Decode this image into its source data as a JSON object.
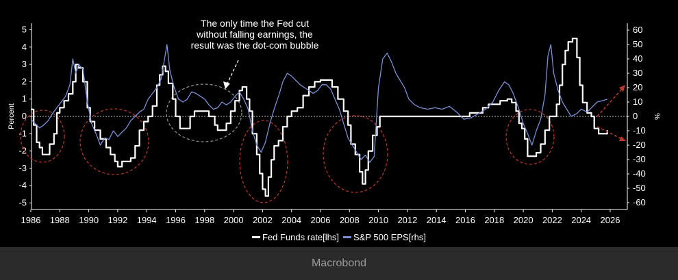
{
  "chart_data": {
    "type": "line",
    "annotation": [
      "The only time the Fed cut",
      "without falling earnings, the",
      "result was the dot-com bubble"
    ],
    "ylabel_left": "Percent",
    "ylabel_right": "%",
    "xlim": [
      1986,
      2027.5
    ],
    "ylim_left": [
      -5.5,
      5.5
    ],
    "ylim_right": [
      -62,
      62
    ],
    "x_ticks": [
      "1986",
      "1988",
      "1990",
      "1992",
      "1994",
      "1996",
      "1998",
      "2000",
      "2002",
      "2004",
      "2006",
      "2008",
      "2010",
      "2012",
      "2014",
      "2016",
      "2018",
      "2020",
      "2022",
      "2024",
      "2026"
    ],
    "y_left_ticks": [
      "5",
      "4",
      "3",
      "2",
      "1",
      "0",
      "-1",
      "-2",
      "-3",
      "-4",
      "-5"
    ],
    "y_right_ticks": [
      "60",
      "50",
      "40",
      "30",
      "20",
      "10",
      "0",
      "-10",
      "-20",
      "-30",
      "-40",
      "-50",
      "-60"
    ],
    "zero_line": true,
    "series": [
      {
        "name": "Fed Funds rate[lhs]",
        "axis": "left",
        "color": "#ffffff",
        "points": [
          [
            1986.0,
            0.4
          ],
          [
            1986.2,
            -0.5
          ],
          [
            1986.4,
            -1.5
          ],
          [
            1986.6,
            -1.8
          ],
          [
            1986.8,
            -2.2
          ],
          [
            1987.1,
            -2.2
          ],
          [
            1987.3,
            -1.6
          ],
          [
            1987.6,
            -1.0
          ],
          [
            1987.8,
            0.2
          ],
          [
            1988.0,
            0.5
          ],
          [
            1988.3,
            0.9
          ],
          [
            1988.6,
            1.3
          ],
          [
            1988.9,
            2.0
          ],
          [
            1989.1,
            3.0
          ],
          [
            1989.3,
            2.8
          ],
          [
            1989.6,
            2.0
          ],
          [
            1989.9,
            0.5
          ],
          [
            1990.1,
            -0.3
          ],
          [
            1990.4,
            -0.8
          ],
          [
            1990.8,
            -1.3
          ],
          [
            1991.2,
            -1.8
          ],
          [
            1991.5,
            -2.2
          ],
          [
            1991.8,
            -2.6
          ],
          [
            1992.0,
            -2.9
          ],
          [
            1992.3,
            -2.6
          ],
          [
            1992.6,
            -2.6
          ],
          [
            1992.9,
            -2.4
          ],
          [
            1993.2,
            -1.7
          ],
          [
            1993.5,
            -0.8
          ],
          [
            1993.8,
            -0.3
          ],
          [
            1994.1,
            0.0
          ],
          [
            1994.4,
            0.6
          ],
          [
            1994.7,
            1.8
          ],
          [
            1994.9,
            2.4
          ],
          [
            1995.1,
            2.9
          ],
          [
            1995.3,
            2.6
          ],
          [
            1995.5,
            1.9
          ],
          [
            1995.8,
            1.0
          ],
          [
            1996.0,
            0.0
          ],
          [
            1996.3,
            -0.7
          ],
          [
            1996.6,
            -0.7
          ],
          [
            1997.0,
            0.0
          ],
          [
            1997.3,
            0.3
          ],
          [
            1997.6,
            0.3
          ],
          [
            1997.9,
            0.3
          ],
          [
            1998.3,
            0.0
          ],
          [
            1998.7,
            -0.5
          ],
          [
            1998.9,
            -0.8
          ],
          [
            1999.2,
            -0.8
          ],
          [
            1999.5,
            -0.4
          ],
          [
            1999.8,
            0.3
          ],
          [
            2000.1,
            0.9
          ],
          [
            2000.4,
            1.5
          ],
          [
            2000.6,
            1.7
          ],
          [
            2000.9,
            1.0
          ],
          [
            2001.1,
            0.3
          ],
          [
            2001.3,
            -1.0
          ],
          [
            2001.6,
            -2.2
          ],
          [
            2001.8,
            -3.3
          ],
          [
            2002.0,
            -4.2
          ],
          [
            2002.2,
            -4.6
          ],
          [
            2002.4,
            -3.5
          ],
          [
            2002.6,
            -2.5
          ],
          [
            2002.8,
            -1.7
          ],
          [
            2003.1,
            -1.4
          ],
          [
            2003.4,
            -0.6
          ],
          [
            2003.7,
            0.0
          ],
          [
            2004.0,
            0.3
          ],
          [
            2004.4,
            0.5
          ],
          [
            2004.8,
            1.2
          ],
          [
            2005.2,
            1.7
          ],
          [
            2005.6,
            2.0
          ],
          [
            2006.0,
            2.1
          ],
          [
            2006.4,
            2.1
          ],
          [
            2006.8,
            1.7
          ],
          [
            2007.2,
            1.0
          ],
          [
            2007.6,
            0.3
          ],
          [
            2007.9,
            -0.5
          ],
          [
            2008.1,
            -1.6
          ],
          [
            2008.4,
            -2.2
          ],
          [
            2008.7,
            -3.2
          ],
          [
            2008.9,
            -3.9
          ],
          [
            2009.1,
            -3.1
          ],
          [
            2009.3,
            -2.0
          ],
          [
            2009.6,
            -1.1
          ],
          [
            2009.9,
            -0.6
          ],
          [
            2010.1,
            0.0
          ],
          [
            2012.0,
            0.0
          ],
          [
            2014.0,
            0.0
          ],
          [
            2016.0,
            0.0
          ],
          [
            2016.3,
            0.2
          ],
          [
            2016.8,
            0.2
          ],
          [
            2017.2,
            0.5
          ],
          [
            2017.6,
            0.7
          ],
          [
            2018.0,
            0.7
          ],
          [
            2018.4,
            0.9
          ],
          [
            2018.9,
            1.0
          ],
          [
            2019.2,
            0.8
          ],
          [
            2019.5,
            0.3
          ],
          [
            2019.7,
            -0.4
          ],
          [
            2019.9,
            -0.7
          ],
          [
            2020.1,
            -1.3
          ],
          [
            2020.3,
            -2.3
          ],
          [
            2020.6,
            -2.3
          ],
          [
            2020.9,
            -2.1
          ],
          [
            2021.2,
            -1.6
          ],
          [
            2021.5,
            -0.8
          ],
          [
            2021.8,
            0.0
          ],
          [
            2022.1,
            0.0
          ],
          [
            2022.3,
            0.7
          ],
          [
            2022.5,
            1.8
          ],
          [
            2022.7,
            3.0
          ],
          [
            2022.9,
            3.8
          ],
          [
            2023.1,
            4.3
          ],
          [
            2023.4,
            4.5
          ],
          [
            2023.7,
            3.4
          ],
          [
            2023.9,
            1.8
          ],
          [
            2024.1,
            0.8
          ],
          [
            2024.4,
            0.2
          ],
          [
            2024.7,
            0.0
          ],
          [
            2024.9,
            -0.7
          ],
          [
            2025.2,
            -1.0
          ],
          [
            2025.6,
            -1.0
          ],
          [
            2025.8,
            -0.8
          ]
        ]
      },
      {
        "name": "S&P 500 EPS[rhs]",
        "axis": "right",
        "color": "#7b8fd6",
        "points": [
          [
            1986.0,
            -2
          ],
          [
            1986.3,
            -5
          ],
          [
            1986.6,
            -8
          ],
          [
            1986.9,
            -6
          ],
          [
            1987.2,
            -3
          ],
          [
            1987.5,
            2
          ],
          [
            1987.8,
            6
          ],
          [
            1988.1,
            10
          ],
          [
            1988.4,
            14
          ],
          [
            1988.7,
            22
          ],
          [
            1988.9,
            40
          ],
          [
            1989.1,
            30
          ],
          [
            1989.3,
            36
          ],
          [
            1989.6,
            33
          ],
          [
            1989.9,
            10
          ],
          [
            1990.2,
            -5
          ],
          [
            1990.5,
            -12
          ],
          [
            1990.8,
            -20
          ],
          [
            1991.1,
            -15
          ],
          [
            1991.4,
            -16
          ],
          [
            1991.7,
            -10
          ],
          [
            1992.0,
            -14
          ],
          [
            1992.3,
            -11
          ],
          [
            1992.6,
            -8
          ],
          [
            1992.9,
            -3
          ],
          [
            1993.2,
            0
          ],
          [
            1993.5,
            3
          ],
          [
            1993.8,
            5
          ],
          [
            1994.1,
            12
          ],
          [
            1994.4,
            16
          ],
          [
            1994.7,
            20
          ],
          [
            1995.0,
            26
          ],
          [
            1995.2,
            38
          ],
          [
            1995.4,
            50
          ],
          [
            1995.6,
            32
          ],
          [
            1995.9,
            20
          ],
          [
            1996.2,
            12
          ],
          [
            1996.5,
            10
          ],
          [
            1996.8,
            12
          ],
          [
            1997.1,
            17
          ],
          [
            1997.4,
            16
          ],
          [
            1997.7,
            14
          ],
          [
            1998.0,
            12
          ],
          [
            1998.3,
            8
          ],
          [
            1998.6,
            5
          ],
          [
            1998.9,
            6
          ],
          [
            1999.2,
            10
          ],
          [
            1999.5,
            8
          ],
          [
            1999.8,
            10
          ],
          [
            2000.1,
            14
          ],
          [
            2000.4,
            17
          ],
          [
            2000.7,
            12
          ],
          [
            2001.0,
            5
          ],
          [
            2001.3,
            -10
          ],
          [
            2001.6,
            -20
          ],
          [
            2001.9,
            -25
          ],
          [
            2002.2,
            -18
          ],
          [
            2002.5,
            -5
          ],
          [
            2002.8,
            5
          ],
          [
            2003.1,
            14
          ],
          [
            2003.4,
            24
          ],
          [
            2003.7,
            30
          ],
          [
            2004.0,
            28
          ],
          [
            2004.3,
            25
          ],
          [
            2004.6,
            22
          ],
          [
            2004.9,
            20
          ],
          [
            2005.2,
            18
          ],
          [
            2005.5,
            16
          ],
          [
            2005.8,
            18
          ],
          [
            2006.1,
            22
          ],
          [
            2006.4,
            22
          ],
          [
            2006.7,
            19
          ],
          [
            2007.0,
            12
          ],
          [
            2007.3,
            5
          ],
          [
            2007.6,
            -5
          ],
          [
            2007.9,
            -15
          ],
          [
            2008.2,
            -20
          ],
          [
            2008.5,
            -25
          ],
          [
            2008.8,
            -30
          ],
          [
            2009.1,
            -27
          ],
          [
            2009.4,
            -32
          ],
          [
            2009.7,
            -28
          ],
          [
            2010.0,
            20
          ],
          [
            2010.3,
            40
          ],
          [
            2010.6,
            44
          ],
          [
            2010.9,
            38
          ],
          [
            2011.2,
            30
          ],
          [
            2011.5,
            25
          ],
          [
            2011.8,
            20
          ],
          [
            2012.1,
            12
          ],
          [
            2012.5,
            8
          ],
          [
            2012.9,
            6
          ],
          [
            2013.4,
            5
          ],
          [
            2013.9,
            6
          ],
          [
            2014.4,
            5
          ],
          [
            2014.9,
            7
          ],
          [
            2015.4,
            3
          ],
          [
            2015.9,
            -2
          ],
          [
            2016.4,
            -1
          ],
          [
            2016.9,
            2
          ],
          [
            2017.4,
            5
          ],
          [
            2017.9,
            10
          ],
          [
            2018.3,
            18
          ],
          [
            2018.7,
            24
          ],
          [
            2019.0,
            22
          ],
          [
            2019.3,
            16
          ],
          [
            2019.7,
            5
          ],
          [
            2020.0,
            -5
          ],
          [
            2020.3,
            -12
          ],
          [
            2020.6,
            -20
          ],
          [
            2020.9,
            -10
          ],
          [
            2021.2,
            -2
          ],
          [
            2021.5,
            15
          ],
          [
            2021.7,
            42
          ],
          [
            2021.9,
            50
          ],
          [
            2022.1,
            30
          ],
          [
            2022.4,
            18
          ],
          [
            2022.7,
            10
          ],
          [
            2023.0,
            5
          ],
          [
            2023.3,
            0
          ],
          [
            2023.7,
            2
          ],
          [
            2024.0,
            5
          ],
          [
            2024.4,
            3
          ],
          [
            2024.8,
            7
          ],
          [
            2025.1,
            10
          ],
          [
            2025.5,
            11
          ],
          [
            2025.8,
            12
          ]
        ]
      }
    ],
    "legend": [
      "Fed Funds rate[lhs]",
      "S&P 500 EPS[rhs]"
    ],
    "legend_position": "bottom-center",
    "source": "Macrobond"
  }
}
